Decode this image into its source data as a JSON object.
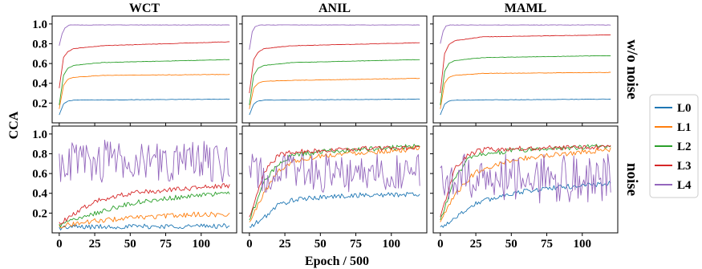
{
  "chart_data": {
    "type": "line",
    "xlabel": "Epoch / 500",
    "ylabel": "CCA",
    "xlim": [
      -5,
      125
    ],
    "ylim": [
      0.0,
      1.08
    ],
    "xticks": [
      0,
      25,
      50,
      75,
      100
    ],
    "yticks": [
      0.2,
      0.4,
      0.6,
      0.8,
      1.0
    ],
    "columns": [
      "WCT",
      "ANIL",
      "MAML"
    ],
    "rows": [
      "w/o noise",
      "noise"
    ],
    "grid": false,
    "legend": {
      "placement": "right",
      "entries": [
        {
          "label": "L0",
          "color": "#1f77b4"
        },
        {
          "label": "L1",
          "color": "#ff7f0e"
        },
        {
          "label": "L2",
          "color": "#2ca02c"
        },
        {
          "label": "L3",
          "color": "#d62728"
        },
        {
          "label": "L4",
          "color": "#9467bd"
        }
      ]
    },
    "x_range_of_series": [
      0,
      120
    ],
    "panels": [
      {
        "column": "WCT",
        "row": "w/o noise",
        "series": [
          {
            "name": "L0",
            "values": [
              {
                "x": 0,
                "y": 0.08
              },
              {
                "x": 3,
                "y": 0.19
              },
              {
                "x": 6,
                "y": 0.22
              },
              {
                "x": 10,
                "y": 0.23
              },
              {
                "x": 120,
                "y": 0.24
              }
            ]
          },
          {
            "name": "L1",
            "values": [
              {
                "x": 0,
                "y": 0.14
              },
              {
                "x": 3,
                "y": 0.38
              },
              {
                "x": 6,
                "y": 0.44
              },
              {
                "x": 10,
                "y": 0.46
              },
              {
                "x": 30,
                "y": 0.48
              },
              {
                "x": 120,
                "y": 0.49
              }
            ]
          },
          {
            "name": "L2",
            "values": [
              {
                "x": 0,
                "y": 0.18
              },
              {
                "x": 3,
                "y": 0.48
              },
              {
                "x": 6,
                "y": 0.55
              },
              {
                "x": 10,
                "y": 0.58
              },
              {
                "x": 30,
                "y": 0.61
              },
              {
                "x": 120,
                "y": 0.64
              }
            ]
          },
          {
            "name": "L3",
            "values": [
              {
                "x": 0,
                "y": 0.35
              },
              {
                "x": 3,
                "y": 0.66
              },
              {
                "x": 6,
                "y": 0.72
              },
              {
                "x": 10,
                "y": 0.75
              },
              {
                "x": 30,
                "y": 0.78
              },
              {
                "x": 120,
                "y": 0.82
              }
            ]
          },
          {
            "name": "L4",
            "values": [
              {
                "x": 0,
                "y": 0.78
              },
              {
                "x": 2,
                "y": 0.9
              },
              {
                "x": 4,
                "y": 0.96
              },
              {
                "x": 7,
                "y": 0.99
              },
              {
                "x": 120,
                "y": 0.99
              }
            ]
          }
        ]
      },
      {
        "column": "ANIL",
        "row": "w/o noise",
        "series": [
          {
            "name": "L0",
            "values": [
              {
                "x": 0,
                "y": 0.08
              },
              {
                "x": 3,
                "y": 0.19
              },
              {
                "x": 6,
                "y": 0.22
              },
              {
                "x": 10,
                "y": 0.23
              },
              {
                "x": 120,
                "y": 0.24
              }
            ]
          },
          {
            "name": "L1",
            "values": [
              {
                "x": 0,
                "y": 0.14
              },
              {
                "x": 3,
                "y": 0.35
              },
              {
                "x": 6,
                "y": 0.4
              },
              {
                "x": 10,
                "y": 0.42
              },
              {
                "x": 30,
                "y": 0.43
              },
              {
                "x": 120,
                "y": 0.45
              }
            ]
          },
          {
            "name": "L2",
            "values": [
              {
                "x": 0,
                "y": 0.18
              },
              {
                "x": 3,
                "y": 0.48
              },
              {
                "x": 6,
                "y": 0.55
              },
              {
                "x": 10,
                "y": 0.58
              },
              {
                "x": 30,
                "y": 0.61
              },
              {
                "x": 120,
                "y": 0.64
              }
            ]
          },
          {
            "name": "L3",
            "values": [
              {
                "x": 0,
                "y": 0.3
              },
              {
                "x": 3,
                "y": 0.64
              },
              {
                "x": 6,
                "y": 0.71
              },
              {
                "x": 10,
                "y": 0.75
              },
              {
                "x": 30,
                "y": 0.78
              },
              {
                "x": 120,
                "y": 0.81
              }
            ]
          },
          {
            "name": "L4",
            "values": [
              {
                "x": 0,
                "y": 0.74
              },
              {
                "x": 2,
                "y": 0.92
              },
              {
                "x": 4,
                "y": 0.97
              },
              {
                "x": 7,
                "y": 0.99
              },
              {
                "x": 120,
                "y": 0.99
              }
            ]
          }
        ]
      },
      {
        "column": "MAML",
        "row": "w/o noise",
        "series": [
          {
            "name": "L0",
            "values": [
              {
                "x": 0,
                "y": 0.08
              },
              {
                "x": 3,
                "y": 0.19
              },
              {
                "x": 6,
                "y": 0.22
              },
              {
                "x": 10,
                "y": 0.23
              },
              {
                "x": 120,
                "y": 0.24
              }
            ]
          },
          {
            "name": "L1",
            "values": [
              {
                "x": 0,
                "y": 0.14
              },
              {
                "x": 3,
                "y": 0.4
              },
              {
                "x": 6,
                "y": 0.46
              },
              {
                "x": 10,
                "y": 0.48
              },
              {
                "x": 30,
                "y": 0.5
              },
              {
                "x": 120,
                "y": 0.51
              }
            ]
          },
          {
            "name": "L2",
            "values": [
              {
                "x": 0,
                "y": 0.18
              },
              {
                "x": 3,
                "y": 0.52
              },
              {
                "x": 6,
                "y": 0.6
              },
              {
                "x": 10,
                "y": 0.63
              },
              {
                "x": 30,
                "y": 0.66
              },
              {
                "x": 120,
                "y": 0.68
              }
            ]
          },
          {
            "name": "L3",
            "values": [
              {
                "x": 0,
                "y": 0.3
              },
              {
                "x": 3,
                "y": 0.7
              },
              {
                "x": 6,
                "y": 0.79
              },
              {
                "x": 10,
                "y": 0.83
              },
              {
                "x": 30,
                "y": 0.87
              },
              {
                "x": 120,
                "y": 0.89
              }
            ]
          },
          {
            "name": "L4",
            "values": [
              {
                "x": 0,
                "y": 0.8
              },
              {
                "x": 2,
                "y": 0.93
              },
              {
                "x": 4,
                "y": 0.98
              },
              {
                "x": 7,
                "y": 0.99
              },
              {
                "x": 120,
                "y": 0.99
              }
            ]
          }
        ]
      },
      {
        "column": "WCT",
        "row": "noise",
        "series": [
          {
            "name": "L0",
            "values": [
              {
                "x": 0,
                "y": 0.05
              },
              {
                "x": 10,
                "y": 0.06
              },
              {
                "x": 120,
                "y": 0.07
              }
            ]
          },
          {
            "name": "L1",
            "values": [
              {
                "x": 0,
                "y": 0.07
              },
              {
                "x": 25,
                "y": 0.12
              },
              {
                "x": 50,
                "y": 0.15
              },
              {
                "x": 75,
                "y": 0.17
              },
              {
                "x": 100,
                "y": 0.19
              },
              {
                "x": 120,
                "y": 0.18
              }
            ]
          },
          {
            "name": "L2",
            "values": [
              {
                "x": 0,
                "y": 0.08
              },
              {
                "x": 25,
                "y": 0.2
              },
              {
                "x": 50,
                "y": 0.3
              },
              {
                "x": 75,
                "y": 0.35
              },
              {
                "x": 100,
                "y": 0.38
              },
              {
                "x": 120,
                "y": 0.4
              }
            ]
          },
          {
            "name": "L3",
            "values": [
              {
                "x": 0,
                "y": 0.1
              },
              {
                "x": 25,
                "y": 0.32
              },
              {
                "x": 50,
                "y": 0.4
              },
              {
                "x": 75,
                "y": 0.43
              },
              {
                "x": 100,
                "y": 0.46
              },
              {
                "x": 120,
                "y": 0.48
              }
            ]
          },
          {
            "name": "L4",
            "mean": 0.72,
            "spread": 0.22,
            "values": [
              {
                "x": 0,
                "y": 0.7
              },
              {
                "x": 10,
                "y": 0.72
              },
              {
                "x": 25,
                "y": 0.68
              },
              {
                "x": 50,
                "y": 0.74
              },
              {
                "x": 75,
                "y": 0.72
              },
              {
                "x": 100,
                "y": 0.75
              },
              {
                "x": 120,
                "y": 0.72
              }
            ]
          }
        ]
      },
      {
        "column": "ANIL",
        "row": "noise",
        "series": [
          {
            "name": "L0",
            "values": [
              {
                "x": 0,
                "y": 0.05
              },
              {
                "x": 10,
                "y": 0.15
              },
              {
                "x": 20,
                "y": 0.28
              },
              {
                "x": 30,
                "y": 0.33
              },
              {
                "x": 50,
                "y": 0.36
              },
              {
                "x": 75,
                "y": 0.38
              },
              {
                "x": 120,
                "y": 0.39
              }
            ]
          },
          {
            "name": "L1",
            "values": [
              {
                "x": 0,
                "y": 0.1
              },
              {
                "x": 10,
                "y": 0.4
              },
              {
                "x": 20,
                "y": 0.62
              },
              {
                "x": 30,
                "y": 0.72
              },
              {
                "x": 50,
                "y": 0.78
              },
              {
                "x": 75,
                "y": 0.81
              },
              {
                "x": 120,
                "y": 0.85
              }
            ]
          },
          {
            "name": "L2",
            "values": [
              {
                "x": 0,
                "y": 0.12
              },
              {
                "x": 10,
                "y": 0.5
              },
              {
                "x": 20,
                "y": 0.7
              },
              {
                "x": 30,
                "y": 0.78
              },
              {
                "x": 50,
                "y": 0.82
              },
              {
                "x": 75,
                "y": 0.84
              },
              {
                "x": 120,
                "y": 0.88
              }
            ]
          },
          {
            "name": "L3",
            "values": [
              {
                "x": 0,
                "y": 0.15
              },
              {
                "x": 10,
                "y": 0.6
              },
              {
                "x": 20,
                "y": 0.78
              },
              {
                "x": 30,
                "y": 0.82
              },
              {
                "x": 50,
                "y": 0.83
              },
              {
                "x": 75,
                "y": 0.85
              },
              {
                "x": 120,
                "y": 0.86
              }
            ]
          },
          {
            "name": "L4",
            "mean": 0.6,
            "spread": 0.2,
            "values": [
              {
                "x": 0,
                "y": 0.5
              },
              {
                "x": 25,
                "y": 0.6
              },
              {
                "x": 50,
                "y": 0.58
              },
              {
                "x": 75,
                "y": 0.62
              },
              {
                "x": 100,
                "y": 0.6
              },
              {
                "x": 120,
                "y": 0.58
              }
            ]
          }
        ]
      },
      {
        "column": "MAML",
        "row": "noise",
        "series": [
          {
            "name": "L0",
            "values": [
              {
                "x": 0,
                "y": 0.05
              },
              {
                "x": 10,
                "y": 0.15
              },
              {
                "x": 25,
                "y": 0.3
              },
              {
                "x": 50,
                "y": 0.4
              },
              {
                "x": 75,
                "y": 0.45
              },
              {
                "x": 100,
                "y": 0.48
              },
              {
                "x": 120,
                "y": 0.5
              }
            ]
          },
          {
            "name": "L1",
            "values": [
              {
                "x": 0,
                "y": 0.1
              },
              {
                "x": 10,
                "y": 0.38
              },
              {
                "x": 25,
                "y": 0.62
              },
              {
                "x": 50,
                "y": 0.74
              },
              {
                "x": 75,
                "y": 0.78
              },
              {
                "x": 100,
                "y": 0.82
              },
              {
                "x": 120,
                "y": 0.84
              }
            ]
          },
          {
            "name": "L2",
            "values": [
              {
                "x": 0,
                "y": 0.12
              },
              {
                "x": 10,
                "y": 0.55
              },
              {
                "x": 20,
                "y": 0.75
              },
              {
                "x": 30,
                "y": 0.8
              },
              {
                "x": 50,
                "y": 0.83
              },
              {
                "x": 75,
                "y": 0.85
              },
              {
                "x": 120,
                "y": 0.88
              }
            ]
          },
          {
            "name": "L3",
            "values": [
              {
                "x": 0,
                "y": 0.15
              },
              {
                "x": 10,
                "y": 0.65
              },
              {
                "x": 20,
                "y": 0.8
              },
              {
                "x": 30,
                "y": 0.84
              },
              {
                "x": 50,
                "y": 0.85
              },
              {
                "x": 75,
                "y": 0.86
              },
              {
                "x": 120,
                "y": 0.87
              }
            ]
          },
          {
            "name": "L4",
            "mean": 0.55,
            "spread": 0.25,
            "values": [
              {
                "x": 0,
                "y": 0.45
              },
              {
                "x": 25,
                "y": 0.55
              },
              {
                "x": 50,
                "y": 0.6
              },
              {
                "x": 75,
                "y": 0.55
              },
              {
                "x": 100,
                "y": 0.58
              },
              {
                "x": 120,
                "y": 0.55
              }
            ]
          }
        ]
      }
    ]
  }
}
